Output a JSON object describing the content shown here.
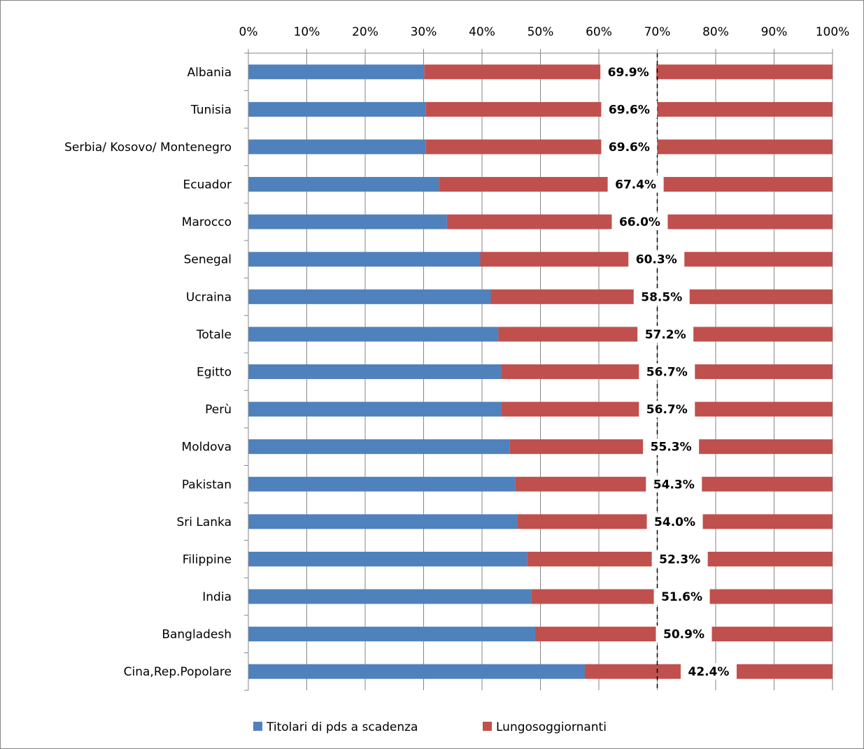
{
  "chart_data": {
    "type": "bar",
    "orientation": "horizontal",
    "stacked": "percent",
    "categories": [
      "Albania",
      "Tunisia",
      "Serbia/ Kosovo/ Montenegro",
      "Ecuador",
      "Marocco",
      "Senegal",
      "Ucraina",
      "Totale",
      "Egitto",
      "Perù",
      "Moldova",
      "Pakistan",
      "Sri Lanka",
      "Filippine",
      "India",
      "Bangladesh",
      "Cina,Rep.Popolare"
    ],
    "series": [
      {
        "name": "Titolari di pds a scadenza",
        "color": "#4F81BD",
        "values": [
          30.1,
          30.4,
          30.4,
          32.6,
          34.0,
          39.7,
          41.5,
          42.8,
          43.3,
          43.3,
          44.7,
          45.7,
          46.0,
          47.7,
          48.4,
          49.1,
          57.6
        ]
      },
      {
        "name": "Lungosoggiornanti",
        "color": "#C0504D",
        "values": [
          69.9,
          69.6,
          69.6,
          67.4,
          66.0,
          60.3,
          58.5,
          57.2,
          56.7,
          56.7,
          55.3,
          54.3,
          54.0,
          52.3,
          51.6,
          50.9,
          42.4
        ],
        "data_labels": [
          "69.9%",
          "69.6%",
          "69.6%",
          "67.4%",
          "66.0%",
          "60.3%",
          "58.5%",
          "57.2%",
          "56.7%",
          "56.7%",
          "55.3%",
          "54.3%",
          "54.0%",
          "52.3%",
          "51.6%",
          "50.9%",
          "42.4%"
        ]
      }
    ],
    "x_axis": {
      "position": "top",
      "range": [
        0,
        100
      ],
      "ticks": [
        0,
        10,
        20,
        30,
        40,
        50,
        60,
        70,
        80,
        90,
        100
      ],
      "tick_labels": [
        "0%",
        "10%",
        "20%",
        "30%",
        "40%",
        "50%",
        "60%",
        "70%",
        "80%",
        "90%",
        "100%"
      ]
    },
    "reference_line": {
      "value": 70,
      "style": "dashed",
      "color": "#000000"
    },
    "grid": true,
    "grid_color": "#868686",
    "legend_placement": "bottom"
  }
}
